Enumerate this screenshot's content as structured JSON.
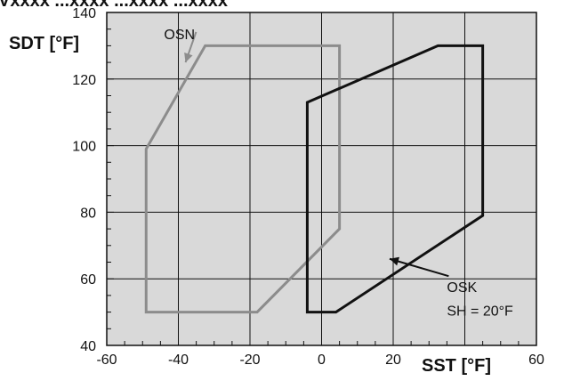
{
  "header_fragment": "Vxxxx  ...xxxx  ...xxxx  ...xxxx",
  "chart_data": {
    "type": "line",
    "title": "",
    "xlabel": "SST [°F]",
    "ylabel": "SDT [°F]",
    "xlim": [
      -60,
      60
    ],
    "ylim": [
      40,
      140
    ],
    "x_ticks": [
      -60,
      -40,
      -20,
      0,
      20,
      40,
      60
    ],
    "y_ticks": [
      40,
      60,
      80,
      100,
      120,
      140
    ],
    "x_tick_labels": [
      "-60",
      "-40",
      "-20",
      "0",
      "20",
      "",
      "60"
    ],
    "y_tick_labels": [
      "40",
      "60",
      "80",
      "100",
      "120",
      "140"
    ],
    "grid": true,
    "background_color": "#d9d9d9",
    "series": [
      {
        "name": "OSN",
        "color": "#8c8c8c",
        "closed": true,
        "x": [
          -32.5,
          5,
          5,
          -18,
          -49,
          -49,
          -32.5
        ],
        "y": [
          130,
          130,
          75,
          50,
          50,
          99,
          130
        ]
      },
      {
        "name": "OSK",
        "color": "#111111",
        "closed": true,
        "x": [
          32.5,
          45,
          45,
          4,
          -4,
          -4,
          32.5
        ],
        "y": [
          130,
          130,
          79,
          50,
          50,
          113,
          130
        ]
      }
    ],
    "annotations": [
      {
        "text": "OSN",
        "x": -44,
        "y": 132,
        "arrow_to": [
          -38,
          125
        ]
      },
      {
        "text": "OSK",
        "x": 35,
        "y": 56,
        "arrow_to": [
          19,
          66
        ]
      },
      {
        "text": "SH = 20°F",
        "x": 35,
        "y": 49
      }
    ]
  }
}
